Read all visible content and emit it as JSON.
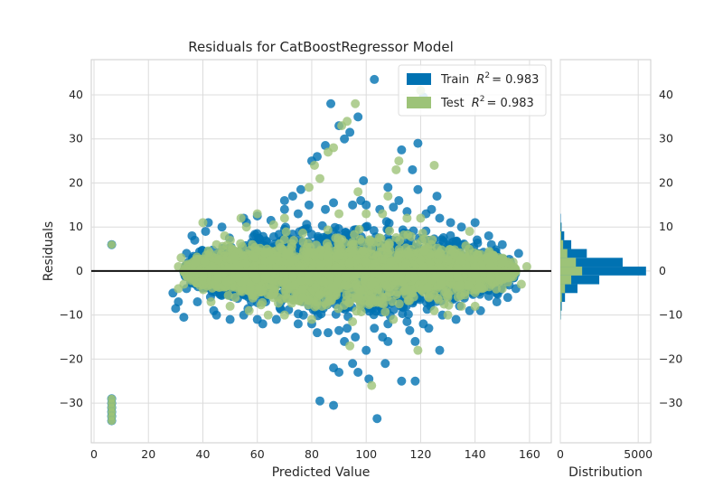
{
  "chart_data": {
    "type": "scatter",
    "title": "Residuals for CatBoostRegressor Model",
    "main": {
      "xlabel": "Predicted Value",
      "ylabel": "Residuals",
      "xlim": [
        -1,
        168
      ],
      "ylim": [
        -39,
        48
      ],
      "xticks": [
        0,
        20,
        40,
        60,
        80,
        100,
        120,
        140,
        160
      ],
      "yticks": [
        -30,
        -20,
        -10,
        0,
        10,
        20,
        30,
        40
      ],
      "zero_line": 0,
      "grid": true
    },
    "histogram": {
      "xlabel": "Distribution",
      "xlim": [
        0,
        5800
      ],
      "xticks": [
        0,
        5000
      ],
      "bin_width": 2,
      "train_counts": [
        {
          "bin": -10,
          "count": 30
        },
        {
          "bin": -8,
          "count": 90
        },
        {
          "bin": -6,
          "count": 300
        },
        {
          "bin": -4,
          "count": 1100
        },
        {
          "bin": -2,
          "count": 2500
        },
        {
          "bin": 0,
          "count": 5500
        },
        {
          "bin": 2,
          "count": 4000
        },
        {
          "bin": 4,
          "count": 1700
        },
        {
          "bin": 6,
          "count": 700
        },
        {
          "bin": 8,
          "count": 250
        },
        {
          "bin": 10,
          "count": 80
        },
        {
          "bin": 12,
          "count": 25
        }
      ],
      "test_counts": [
        {
          "bin": -10,
          "count": 10
        },
        {
          "bin": -8,
          "count": 30
        },
        {
          "bin": -6,
          "count": 100
        },
        {
          "bin": -4,
          "count": 300
        },
        {
          "bin": -2,
          "count": 700
        },
        {
          "bin": 0,
          "count": 1400
        },
        {
          "bin": 2,
          "count": 1000
        },
        {
          "bin": 4,
          "count": 450
        },
        {
          "bin": 6,
          "count": 180
        },
        {
          "bin": 8,
          "count": 60
        },
        {
          "bin": 10,
          "count": 20
        }
      ]
    },
    "legend": {
      "placement": "top-right",
      "entries": [
        {
          "label": "Train",
          "metric": "R",
          "metric_sup": "2",
          "value": "= 0.983"
        },
        {
          "label": "Test",
          "metric": "R",
          "metric_sup": "2",
          "value": "= 0.983"
        }
      ]
    },
    "series": [
      {
        "name": "Train",
        "color": "#0072b2",
        "outliers": [
          [
            103,
            43.5
          ],
          [
            121,
            39.5
          ],
          [
            87,
            38
          ],
          [
            90,
            33
          ],
          [
            92,
            30
          ],
          [
            94,
            31.5
          ],
          [
            97,
            35
          ],
          [
            85,
            28.5
          ],
          [
            82,
            26
          ],
          [
            80,
            25
          ],
          [
            73,
            17
          ],
          [
            76,
            18.5
          ],
          [
            99,
            20.5
          ],
          [
            108,
            19
          ],
          [
            117,
            23
          ],
          [
            119,
            29
          ],
          [
            113,
            27.5
          ],
          [
            119,
            18.5
          ],
          [
            126,
            17
          ],
          [
            88,
            -22
          ],
          [
            90,
            -23
          ],
          [
            95,
            -21
          ],
          [
            97,
            -23
          ],
          [
            101,
            -24.5
          ],
          [
            107,
            -21
          ],
          [
            113,
            -25
          ],
          [
            118,
            -25
          ],
          [
            127,
            -18
          ],
          [
            83,
            -29.5
          ],
          [
            88,
            -30.5
          ],
          [
            104,
            -33.5
          ],
          [
            100,
            -18
          ],
          [
            108,
            -16
          ],
          [
            118,
            -16
          ],
          [
            92,
            -16
          ],
          [
            86,
            -14
          ],
          [
            30,
            -8.5
          ],
          [
            31,
            -7
          ],
          [
            33,
            -10.5
          ],
          [
            29,
            -5
          ],
          [
            148,
            -7
          ],
          [
            152,
            -6
          ],
          [
            155,
            -4
          ],
          [
            156,
            4
          ],
          [
            150,
            6
          ],
          [
            145,
            8
          ],
          [
            140,
            11
          ],
          [
            131,
            11
          ],
          [
            127,
            12
          ],
          [
            122,
            13
          ],
          [
            115,
            13.5
          ],
          [
            105,
            14
          ],
          [
            95,
            15
          ],
          [
            85,
            14
          ],
          [
            75,
            13
          ],
          [
            65,
            11.5
          ],
          [
            56,
            11
          ],
          [
            47,
            10
          ],
          [
            42,
            11
          ],
          [
            37,
            7
          ],
          [
            34,
            4
          ],
          [
            34,
            -4
          ],
          [
            38,
            -7
          ],
          [
            44,
            -9
          ],
          [
            55,
            -10
          ],
          [
            67,
            -11
          ],
          [
            80,
            -12
          ],
          [
            93,
            -13
          ],
          [
            108,
            -12
          ],
          [
            121,
            -12
          ],
          [
            133,
            -11
          ],
          [
            142,
            -9
          ],
          [
            148,
            -5
          ],
          [
            55,
            12
          ],
          [
            60,
            12.5
          ],
          [
            70,
            14
          ],
          [
            100,
            15
          ],
          [
            110,
            14.5
          ],
          [
            135,
            10
          ],
          [
            146,
            6
          ],
          [
            45,
            -10
          ],
          [
            60,
            -11
          ],
          [
            75,
            -12
          ],
          [
            90,
            -13.5
          ],
          [
            103,
            -13
          ],
          [
            115,
            -11.5
          ],
          [
            128,
            -10
          ],
          [
            138,
            -9
          ],
          [
            36,
            8
          ],
          [
            41,
            9
          ],
          [
            150,
            -3
          ],
          [
            153,
            2
          ],
          [
            70,
            16
          ],
          [
            79,
            15
          ],
          [
            88,
            15.5
          ],
          [
            98,
            16
          ],
          [
            112,
            16
          ],
          [
            124,
            14
          ],
          [
            82,
            -14
          ],
          [
            96,
            -15
          ],
          [
            106,
            -15
          ],
          [
            116,
            -13.5
          ],
          [
            123,
            -13
          ],
          [
            62,
            -12
          ],
          [
            50,
            -11
          ]
        ]
      },
      {
        "name": "Test",
        "color": "#9dc378",
        "outliers": [
          [
            120,
            41
          ],
          [
            96,
            38
          ],
          [
            93,
            34
          ],
          [
            91,
            33
          ],
          [
            88,
            28
          ],
          [
            86,
            27
          ],
          [
            81,
            24
          ],
          [
            83,
            21
          ],
          [
            79,
            19
          ],
          [
            97,
            18
          ],
          [
            108,
            17
          ],
          [
            111,
            23
          ],
          [
            112,
            25
          ],
          [
            125,
            24
          ],
          [
            106,
            13
          ],
          [
            120,
            12
          ],
          [
            102,
            -26
          ],
          [
            119,
            -18
          ],
          [
            94,
            -17
          ],
          [
            54,
            12
          ],
          [
            56,
            10
          ],
          [
            66,
            10.5
          ],
          [
            70,
            12
          ],
          [
            60,
            13
          ],
          [
            40,
            11
          ],
          [
            154,
            2
          ],
          [
            159,
            1
          ],
          [
            157,
            -3
          ],
          [
            150,
            -4
          ],
          [
            31,
            -4
          ],
          [
            31,
            1
          ],
          [
            33,
            -3
          ],
          [
            32,
            3
          ],
          [
            140,
            -8
          ],
          [
            130,
            -10
          ],
          [
            110,
            -11
          ],
          [
            95,
            -11.5
          ],
          [
            80,
            -11
          ],
          [
            64,
            -10
          ],
          [
            50,
            -8
          ],
          [
            45,
            6
          ],
          [
            48,
            8
          ],
          [
            90,
            13
          ],
          [
            100,
            13
          ],
          [
            115,
            12
          ],
          [
            138,
            9
          ],
          [
            145,
            4
          ],
          [
            151,
            0
          ],
          [
            135,
            -8
          ],
          [
            125,
            -9
          ],
          [
            70,
            -10
          ],
          [
            57,
            -9
          ],
          [
            43,
            -7
          ]
        ]
      }
    ],
    "cluster": {
      "x_center": 94,
      "x_half_width": 61,
      "y_half_height": 12
    },
    "low_prediction_group": {
      "x": 6.5,
      "train_y": [
        6,
        -29,
        -30,
        -31,
        -32,
        -33,
        -34
      ],
      "test_y": [
        6,
        -29,
        -30,
        -31,
        -32,
        -33,
        -34
      ]
    }
  }
}
